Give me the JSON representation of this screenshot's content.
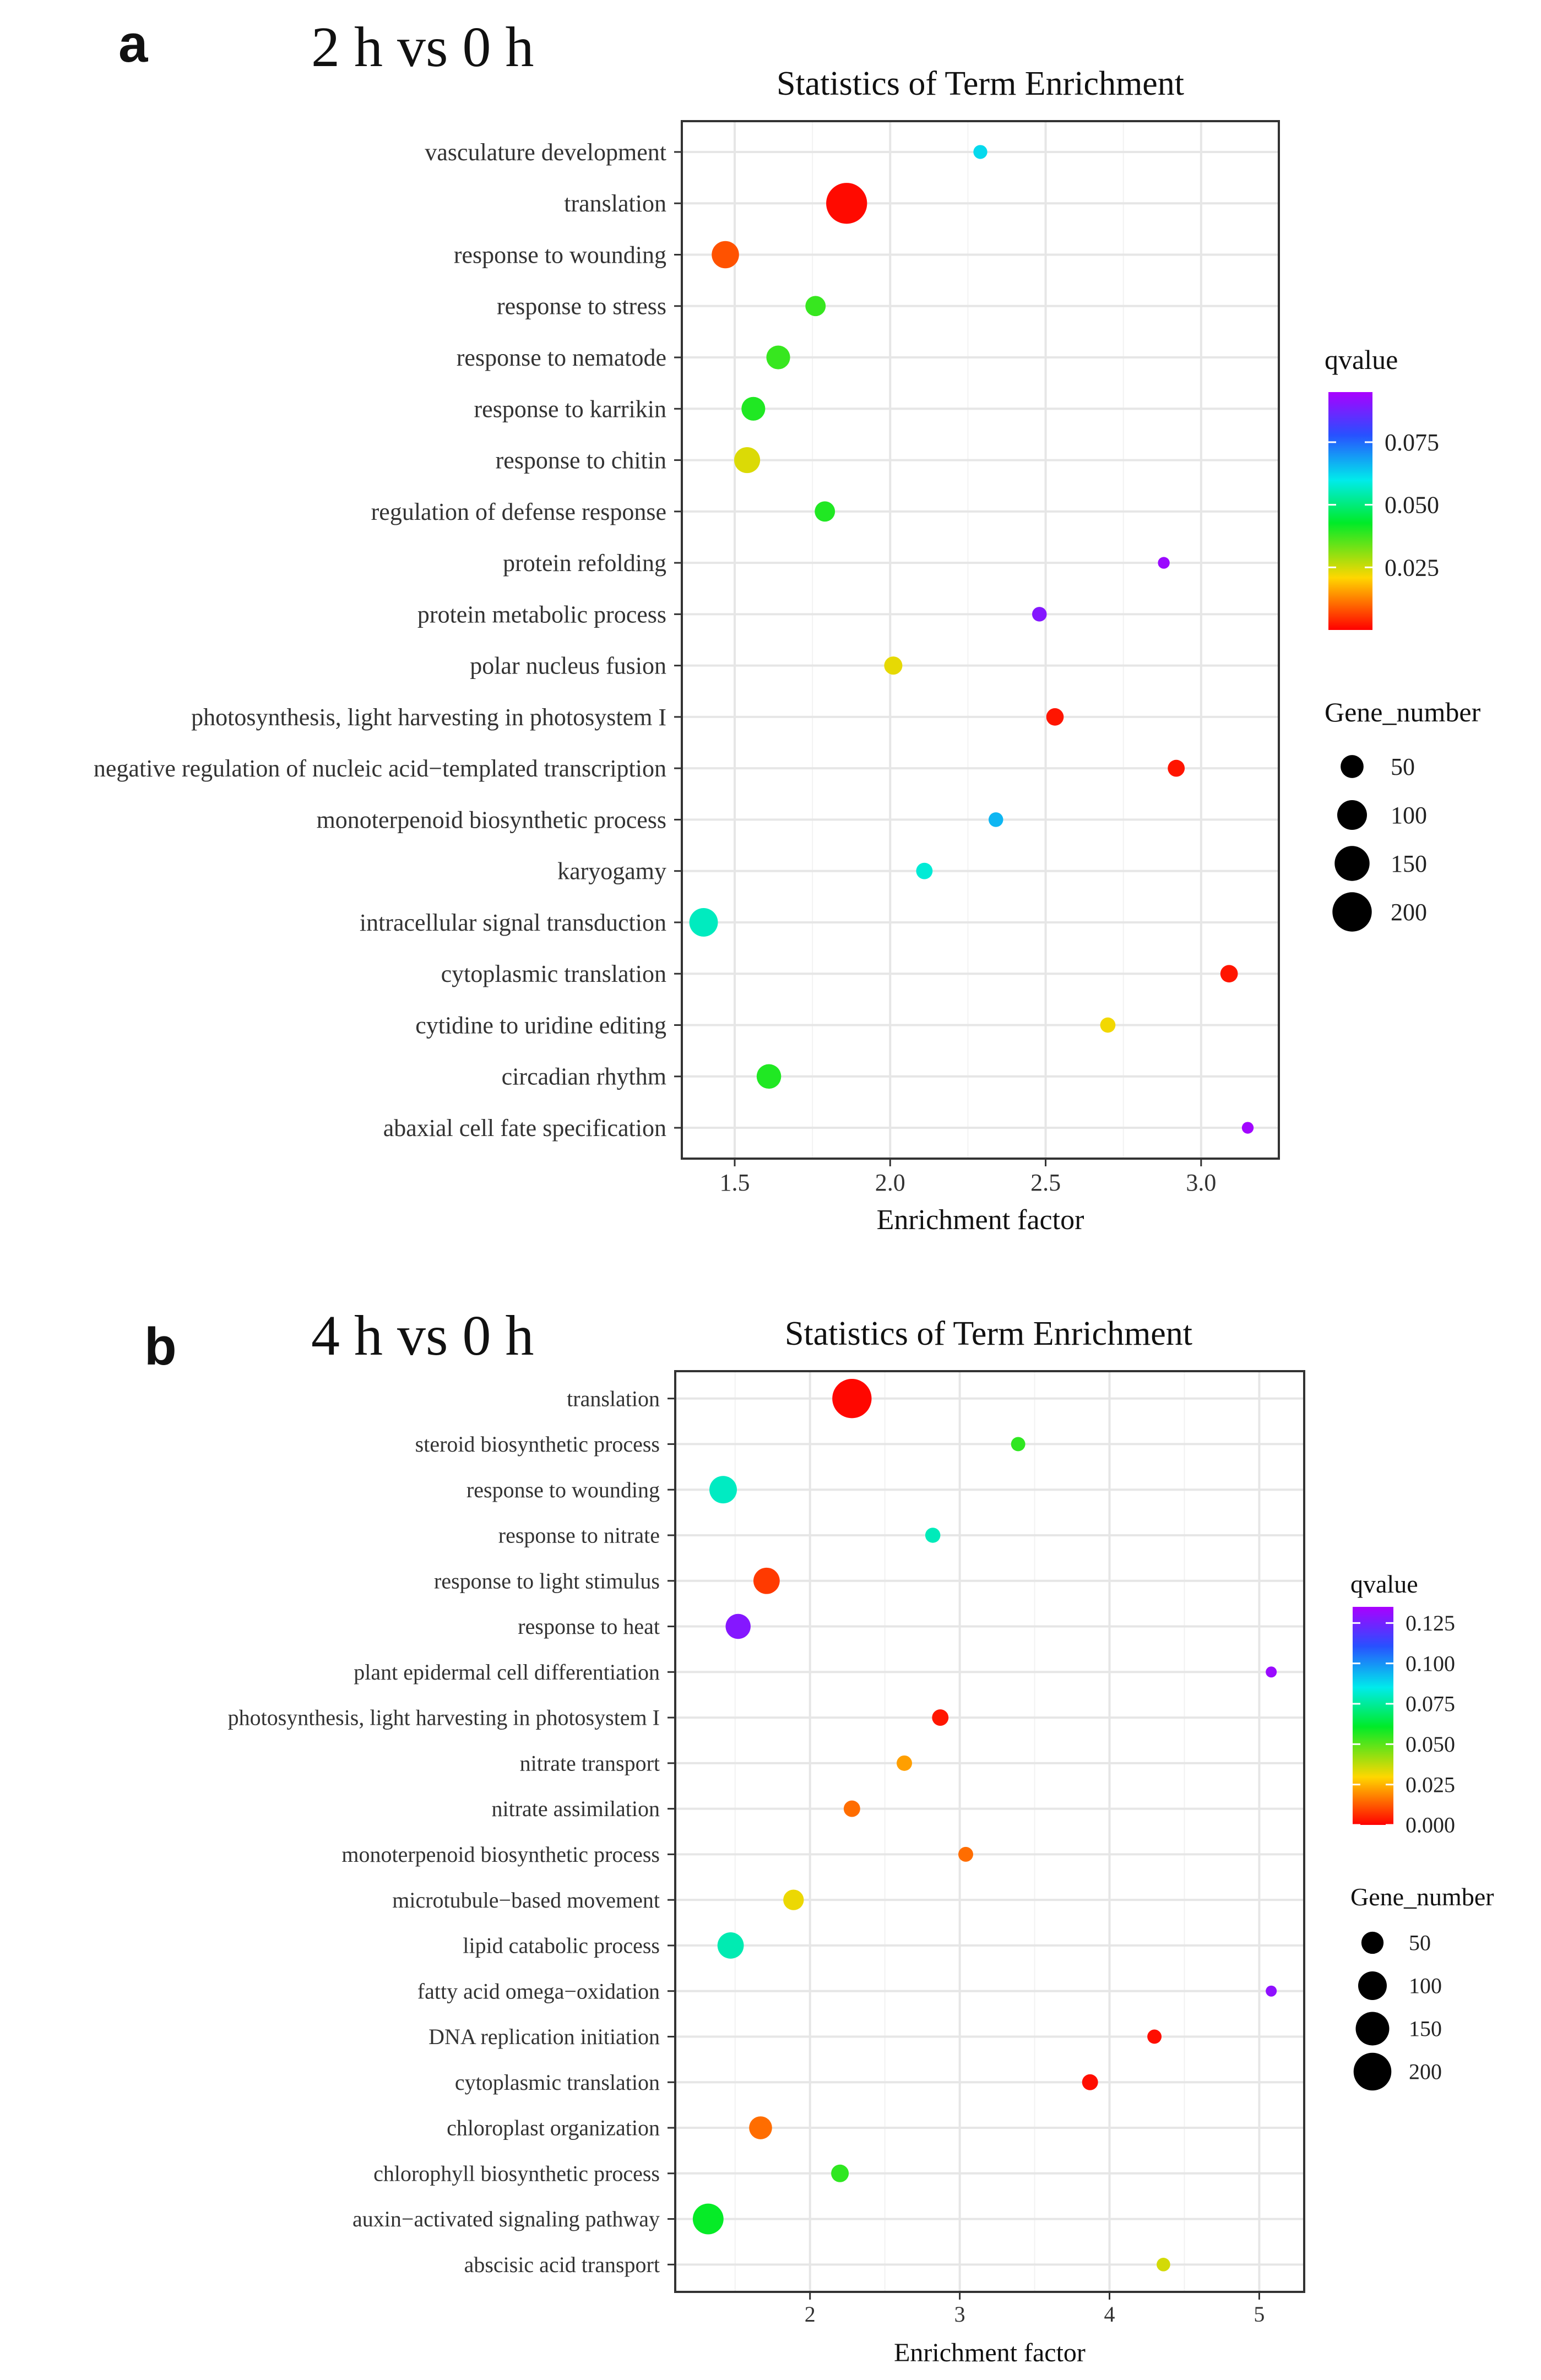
{
  "chart_data": [
    {
      "panel_label": "a",
      "panel_title": "2 h vs 0 h",
      "type": "scatter",
      "title": "Statistics of Term Enrichment",
      "xlabel": "Enrichment factor",
      "ylabel": "",
      "xlim": [
        1.33,
        3.25
      ],
      "xticks": [
        1.5,
        2.0,
        2.5,
        3.0
      ],
      "xtick_labels": [
        "1.5",
        "2.0",
        "2.5",
        "3.0"
      ],
      "grid": true,
      "legend_position": "right",
      "color_legend": {
        "title": "qvalue",
        "min": 0.0,
        "max": 0.095,
        "ticks": [
          0.075,
          0.05,
          0.025
        ],
        "tick_labels": [
          "0.075",
          "0.050",
          "0.025"
        ]
      },
      "size_legend": {
        "title": "Gene_number",
        "values": [
          50,
          100,
          150,
          200
        ],
        "labels": [
          "50",
          "100",
          "150",
          "200"
        ]
      },
      "terms": [
        {
          "term": "vasculature development",
          "x": 2.29,
          "qvalue": 0.062,
          "gene_number": 10
        },
        {
          "term": "translation",
          "x": 1.86,
          "qvalue": 0.001,
          "gene_number": 220
        },
        {
          "term": "response to wounding",
          "x": 1.47,
          "qvalue": 0.008,
          "gene_number": 80
        },
        {
          "term": "response to stress",
          "x": 1.76,
          "qvalue": 0.038,
          "gene_number": 35
        },
        {
          "term": "response to nematode",
          "x": 1.64,
          "qvalue": 0.038,
          "gene_number": 55
        },
        {
          "term": "response to karrikin",
          "x": 1.56,
          "qvalue": 0.04,
          "gene_number": 55
        },
        {
          "term": "response to chitin",
          "x": 1.54,
          "qvalue": 0.024,
          "gene_number": 70
        },
        {
          "term": "regulation of defense response",
          "x": 1.79,
          "qvalue": 0.04,
          "gene_number": 35
        },
        {
          "term": "protein refolding",
          "x": 2.88,
          "qvalue": 0.093,
          "gene_number": 5
        },
        {
          "term": "protein metabolic process",
          "x": 2.48,
          "qvalue": 0.09,
          "gene_number": 12
        },
        {
          "term": "polar nucleus fusion",
          "x": 2.01,
          "qvalue": 0.023,
          "gene_number": 25
        },
        {
          "term": "photosynthesis, light harvesting in photosystem I",
          "x": 2.53,
          "qvalue": 0.002,
          "gene_number": 22
        },
        {
          "term": "negative regulation of nucleic acid−templated transcription",
          "x": 2.92,
          "qvalue": 0.002,
          "gene_number": 20
        },
        {
          "term": "monoterpenoid biosynthetic process",
          "x": 2.34,
          "qvalue": 0.066,
          "gene_number": 12
        },
        {
          "term": "karyogamy",
          "x": 2.11,
          "qvalue": 0.058,
          "gene_number": 18
        },
        {
          "term": "intracellular signal transduction",
          "x": 1.4,
          "qvalue": 0.056,
          "gene_number": 90
        },
        {
          "term": "cytoplasmic translation",
          "x": 3.09,
          "qvalue": 0.002,
          "gene_number": 22
        },
        {
          "term": "cytidine to uridine editing",
          "x": 2.7,
          "qvalue": 0.022,
          "gene_number": 14
        },
        {
          "term": "circadian rhythm",
          "x": 1.61,
          "qvalue": 0.04,
          "gene_number": 60
        },
        {
          "term": "abaxial cell fate specification",
          "x": 3.15,
          "qvalue": 0.094,
          "gene_number": 5
        }
      ]
    },
    {
      "panel_label": "b",
      "panel_title": "4 h vs 0 h",
      "type": "scatter",
      "title": "Statistics of Term Enrichment",
      "xlabel": "Enrichment factor",
      "ylabel": "",
      "xlim": [
        1.1,
        5.3
      ],
      "xticks": [
        2,
        3,
        4,
        5
      ],
      "xtick_labels": [
        "2",
        "3",
        "4",
        "5"
      ],
      "grid": true,
      "legend_position": "right",
      "color_legend": {
        "title": "qvalue",
        "min": 0.0,
        "max": 0.135,
        "ticks": [
          0.125,
          0.1,
          0.075,
          0.05,
          0.025,
          0.0
        ],
        "tick_labels": [
          "0.125",
          "0.100",
          "0.075",
          "0.050",
          "0.025",
          "0.000"
        ]
      },
      "size_legend": {
        "title": "Gene_number",
        "values": [
          50,
          100,
          150,
          200
        ],
        "labels": [
          "50",
          "100",
          "150",
          "200"
        ]
      },
      "terms": [
        {
          "term": "translation",
          "x": 2.28,
          "qvalue": 0.001,
          "gene_number": 220
        },
        {
          "term": "steroid biosynthetic process",
          "x": 3.39,
          "qvalue": 0.055,
          "gene_number": 12
        },
        {
          "term": "response to wounding",
          "x": 1.42,
          "qvalue": 0.08,
          "gene_number": 90
        },
        {
          "term": "response to nitrate",
          "x": 2.82,
          "qvalue": 0.079,
          "gene_number": 15
        },
        {
          "term": "response to light stimulus",
          "x": 1.71,
          "qvalue": 0.008,
          "gene_number": 80
        },
        {
          "term": "response to heat",
          "x": 1.52,
          "qvalue": 0.128,
          "gene_number": 70
        },
        {
          "term": "plant epidermal cell differentiation",
          "x": 5.08,
          "qvalue": 0.132,
          "gene_number": 4
        },
        {
          "term": "photosynthesis, light harvesting in photosystem I",
          "x": 2.87,
          "qvalue": 0.003,
          "gene_number": 20
        },
        {
          "term": "nitrate transport",
          "x": 2.63,
          "qvalue": 0.022,
          "gene_number": 16
        },
        {
          "term": "nitrate assimilation",
          "x": 2.28,
          "qvalue": 0.015,
          "gene_number": 20
        },
        {
          "term": "monoterpenoid biosynthetic process",
          "x": 3.04,
          "qvalue": 0.015,
          "gene_number": 14
        },
        {
          "term": "microtubule−based movement",
          "x": 1.89,
          "qvalue": 0.032,
          "gene_number": 40
        },
        {
          "term": "lipid catabolic process",
          "x": 1.47,
          "qvalue": 0.078,
          "gene_number": 80
        },
        {
          "term": "fatty acid omega−oxidation",
          "x": 5.08,
          "qvalue": 0.13,
          "gene_number": 4
        },
        {
          "term": "DNA replication initiation",
          "x": 4.3,
          "qvalue": 0.002,
          "gene_number": 12
        },
        {
          "term": "cytoplasmic translation",
          "x": 3.87,
          "qvalue": 0.002,
          "gene_number": 18
        },
        {
          "term": "chloroplast organization",
          "x": 1.67,
          "qvalue": 0.015,
          "gene_number": 55
        },
        {
          "term": "chlorophyll biosynthetic process",
          "x": 2.2,
          "qvalue": 0.055,
          "gene_number": 25
        },
        {
          "term": "auxin−activated signaling pathway",
          "x": 1.32,
          "qvalue": 0.06,
          "gene_number": 120
        },
        {
          "term": "abscisic acid transport",
          "x": 4.36,
          "qvalue": 0.035,
          "gene_number": 10
        }
      ]
    }
  ]
}
